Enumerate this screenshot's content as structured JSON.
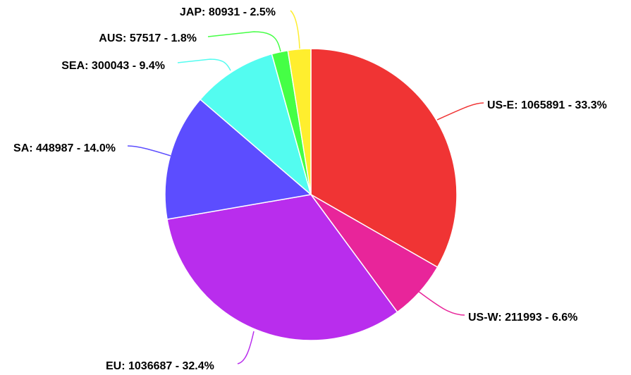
{
  "chart_data": {
    "type": "pie",
    "title": "",
    "start_angle_deg": 0,
    "direction": "clockwise",
    "slices": [
      {
        "name": "US-E",
        "value": 1065891,
        "percent": 33.3,
        "label": "US-E: 1065891 - 33.3%",
        "color": "#f03434"
      },
      {
        "name": "US-W",
        "value": 211993,
        "percent": 6.6,
        "label": "US-W: 211993 - 6.6%",
        "color": "#e8259a"
      },
      {
        "name": "EU",
        "value": 1036687,
        "percent": 32.4,
        "label": "EU: 1036687 - 32.4%",
        "color": "#b92ded"
      },
      {
        "name": "SA",
        "value": 448987,
        "percent": 14.0,
        "label": "SA: 448987 - 14.0%",
        "color": "#5c4dff"
      },
      {
        "name": "SEA",
        "value": 300043,
        "percent": 9.4,
        "label": "SEA: 300043 - 9.4%",
        "color": "#53fcf0"
      },
      {
        "name": "AUS",
        "value": 57517,
        "percent": 1.8,
        "label": "AUS: 57517 - 1.8%",
        "color": "#45ff45"
      },
      {
        "name": "JAP",
        "value": 80931,
        "percent": 2.5,
        "label": "JAP: 80931 - 2.5%",
        "color": "#ffee2e"
      }
    ]
  }
}
